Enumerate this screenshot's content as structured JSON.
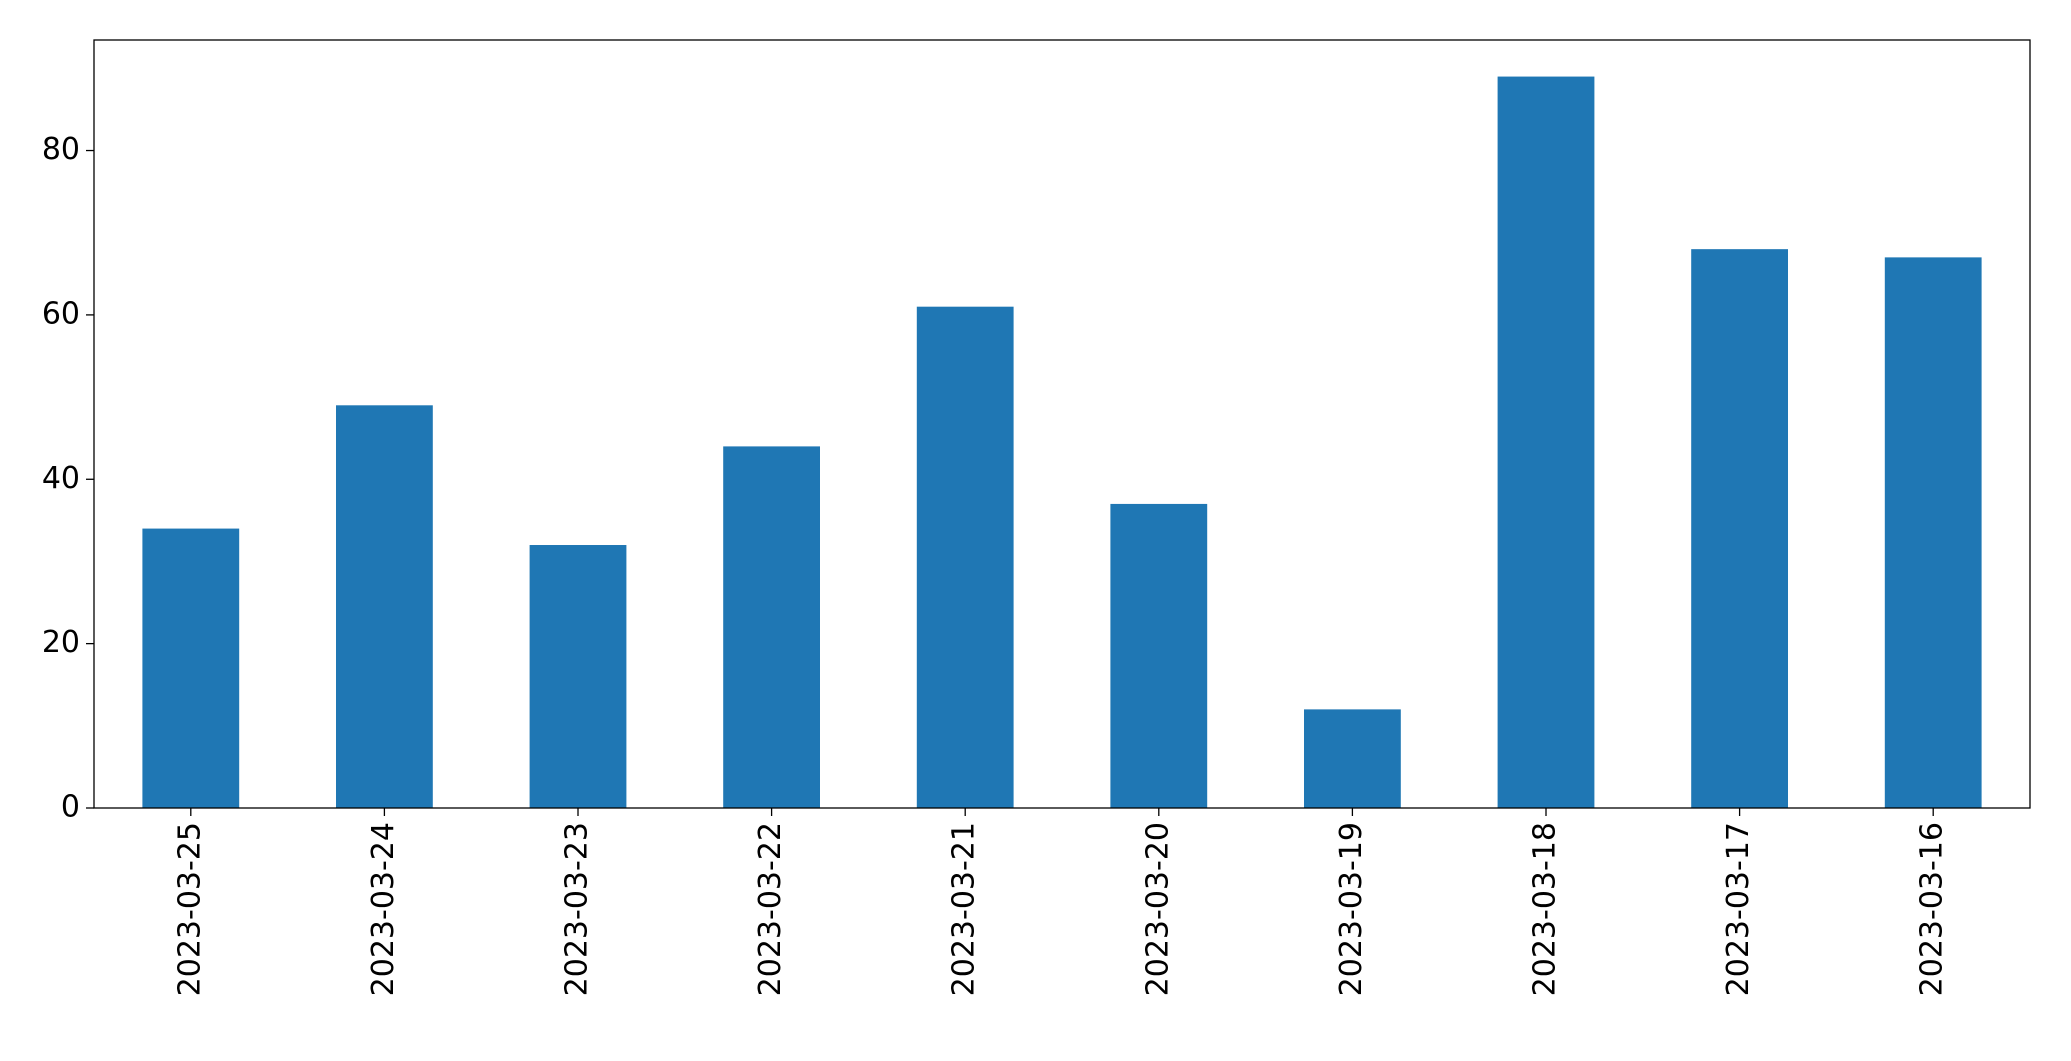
{
  "chart_data": {
    "type": "bar",
    "categories": [
      "2023-03-25",
      "2023-03-24",
      "2023-03-23",
      "2023-03-22",
      "2023-03-21",
      "2023-03-20",
      "2023-03-19",
      "2023-03-18",
      "2023-03-17",
      "2023-03-16"
    ],
    "values": [
      34,
      49,
      32,
      44,
      61,
      37,
      12,
      89,
      68,
      67
    ],
    "color": "#1f77b4",
    "ylim": [
      0,
      93.45
    ],
    "yticks": [
      0,
      20,
      40,
      60,
      80
    ],
    "grid": false
  }
}
